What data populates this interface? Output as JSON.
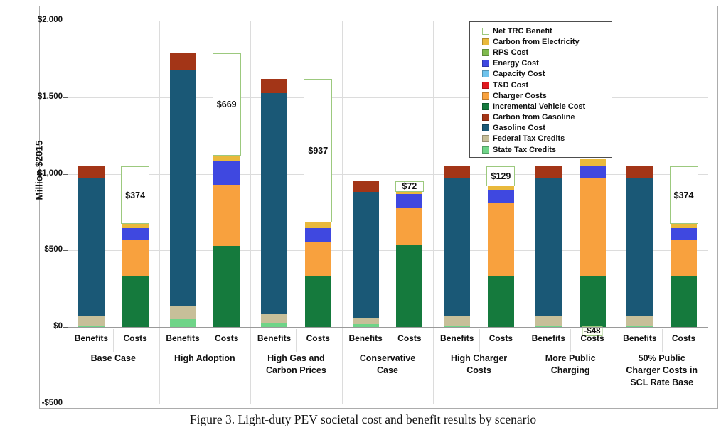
{
  "figure": {
    "caption": "Figure 3. Light-duty PEV societal cost and benefit results by scenario"
  },
  "y_axis": {
    "title": "Million $2015",
    "ticks": [
      {
        "label": "$2,000",
        "value": 2000
      },
      {
        "label": "$1,500",
        "value": 1500
      },
      {
        "label": "$1,000",
        "value": 1000
      },
      {
        "label": "$500",
        "value": 500
      },
      {
        "label": "$0",
        "value": 0
      },
      {
        "label": "-$500",
        "value": -500
      }
    ]
  },
  "x_axis": {
    "bar_labels": [
      "Benefits",
      "Costs"
    ]
  },
  "legend": {
    "items": [
      {
        "label": "Net TRC Benefit",
        "key": "net_trc_benefit",
        "swatch_fill": "#FFFFFF",
        "swatch_border": "#9CC97E"
      },
      {
        "label": "Carbon from Electricity",
        "key": "carbon_from_electricity",
        "swatch_fill": "#E9B93C"
      },
      {
        "label": "RPS Cost",
        "key": "rps_cost",
        "swatch_fill": "#7FBA4D"
      },
      {
        "label": "Energy Cost",
        "key": "energy_cost",
        "swatch_fill": "#3F48E0"
      },
      {
        "label": "Capacity Cost",
        "key": "capacity_cost",
        "swatch_fill": "#6FC3EC"
      },
      {
        "label": "T&D Cost",
        "key": "td_cost",
        "swatch_fill": "#E0191F"
      },
      {
        "label": "Charger Costs",
        "key": "charger_costs",
        "swatch_fill": "#F8A13E"
      },
      {
        "label": "Incremental Vehicle Cost",
        "key": "incremental_vehicle_cost",
        "swatch_fill": "#157A3D"
      },
      {
        "label": "Carbon from Gasoline",
        "key": "carbon_from_gasoline",
        "swatch_fill": "#A33517"
      },
      {
        "label": "Gasoline Cost",
        "key": "gasoline_cost",
        "swatch_fill": "#1A5876"
      },
      {
        "label": "Federal Tax Credits",
        "key": "federal_tax_credits",
        "swatch_fill": "#C7BF99"
      },
      {
        "label": "State Tax Credits",
        "key": "state_tax_credits",
        "swatch_fill": "#6FD488"
      }
    ]
  },
  "chart_data": {
    "type": "bar",
    "stacked": true,
    "title": "Light-duty PEV societal cost and benefit results by scenario",
    "xlabel": "",
    "ylabel": "Million $2015",
    "ylim": [
      -500,
      2000
    ],
    "grid": true,
    "legend_position": "top-right",
    "bar_categories": [
      "Benefits",
      "Costs"
    ],
    "benefits_stack_order": [
      "state_tax_credits",
      "federal_tax_credits",
      "gasoline_cost",
      "carbon_from_gasoline"
    ],
    "costs_stack_order": [
      "incremental_vehicle_cost",
      "charger_costs",
      "energy_cost",
      "carbon_from_electricity"
    ],
    "scenarios": [
      {
        "name": "Base Case",
        "name_lines": [
          "Base Case"
        ],
        "benefits": {
          "state_tax_credits": 10,
          "federal_tax_credits": 60,
          "gasoline_cost": 905,
          "carbon_from_gasoline": 73
        },
        "costs": {
          "incremental_vehicle_cost": 330,
          "charger_costs": 240,
          "energy_cost": 75,
          "carbon_from_electricity": 29
        },
        "net_trc_benefit": 374,
        "net_label": "$374"
      },
      {
        "name": "High Adoption",
        "name_lines": [
          "High Adoption"
        ],
        "benefits": {
          "state_tax_credits": 50,
          "federal_tax_credits": 85,
          "gasoline_cost": 1540,
          "carbon_from_gasoline": 112
        },
        "costs": {
          "incremental_vehicle_cost": 530,
          "charger_costs": 400,
          "energy_cost": 150,
          "carbon_from_electricity": 38
        },
        "net_trc_benefit": 669,
        "net_label": "$669"
      },
      {
        "name": "High Gas and Carbon Prices",
        "name_lines": [
          "High Gas and",
          "Carbon Prices"
        ],
        "benefits": {
          "state_tax_credits": 28,
          "federal_tax_credits": 57,
          "gasoline_cost": 1440,
          "carbon_from_gasoline": 96
        },
        "costs": {
          "incremental_vehicle_cost": 330,
          "charger_costs": 224,
          "energy_cost": 92,
          "carbon_from_electricity": 38
        },
        "net_trc_benefit": 937,
        "net_label": "$937"
      },
      {
        "name": "Conservative Case",
        "name_lines": [
          "Conservative",
          "Case"
        ],
        "benefits": {
          "state_tax_credits": 19,
          "federal_tax_credits": 44,
          "gasoline_cost": 820,
          "carbon_from_gasoline": 71
        },
        "costs": {
          "incremental_vehicle_cost": 538,
          "charger_costs": 240,
          "energy_cost": 88,
          "carbon_from_electricity": 16
        },
        "net_trc_benefit": 72,
        "net_label": "$72"
      },
      {
        "name": "High Charger Costs",
        "name_lines": [
          "High Charger",
          "Costs"
        ],
        "benefits": {
          "state_tax_credits": 10,
          "federal_tax_credits": 60,
          "gasoline_cost": 905,
          "carbon_from_gasoline": 73
        },
        "costs": {
          "incremental_vehicle_cost": 337,
          "charger_costs": 470,
          "energy_cost": 90,
          "carbon_from_electricity": 22
        },
        "net_trc_benefit": 129,
        "net_label": "$129"
      },
      {
        "name": "More Public Charging",
        "name_lines": [
          "More Public",
          "Charging"
        ],
        "benefits": {
          "state_tax_credits": 10,
          "federal_tax_credits": 60,
          "gasoline_cost": 905,
          "carbon_from_gasoline": 73
        },
        "costs": {
          "incremental_vehicle_cost": 337,
          "charger_costs": 632,
          "energy_cost": 85,
          "carbon_from_electricity": 42
        },
        "net_trc_benefit": -48,
        "net_label": "-$48"
      },
      {
        "name": "50% Public Charger Costs in SCL Rate Base",
        "name_lines": [
          "50% Public",
          "Charger Costs in",
          "SCL Rate Base"
        ],
        "benefits": {
          "state_tax_credits": 10,
          "federal_tax_credits": 60,
          "gasoline_cost": 905,
          "carbon_from_gasoline": 73
        },
        "costs": {
          "incremental_vehicle_cost": 330,
          "charger_costs": 240,
          "energy_cost": 75,
          "carbon_from_electricity": 29
        },
        "net_trc_benefit": 374,
        "net_label": "$374"
      }
    ]
  }
}
